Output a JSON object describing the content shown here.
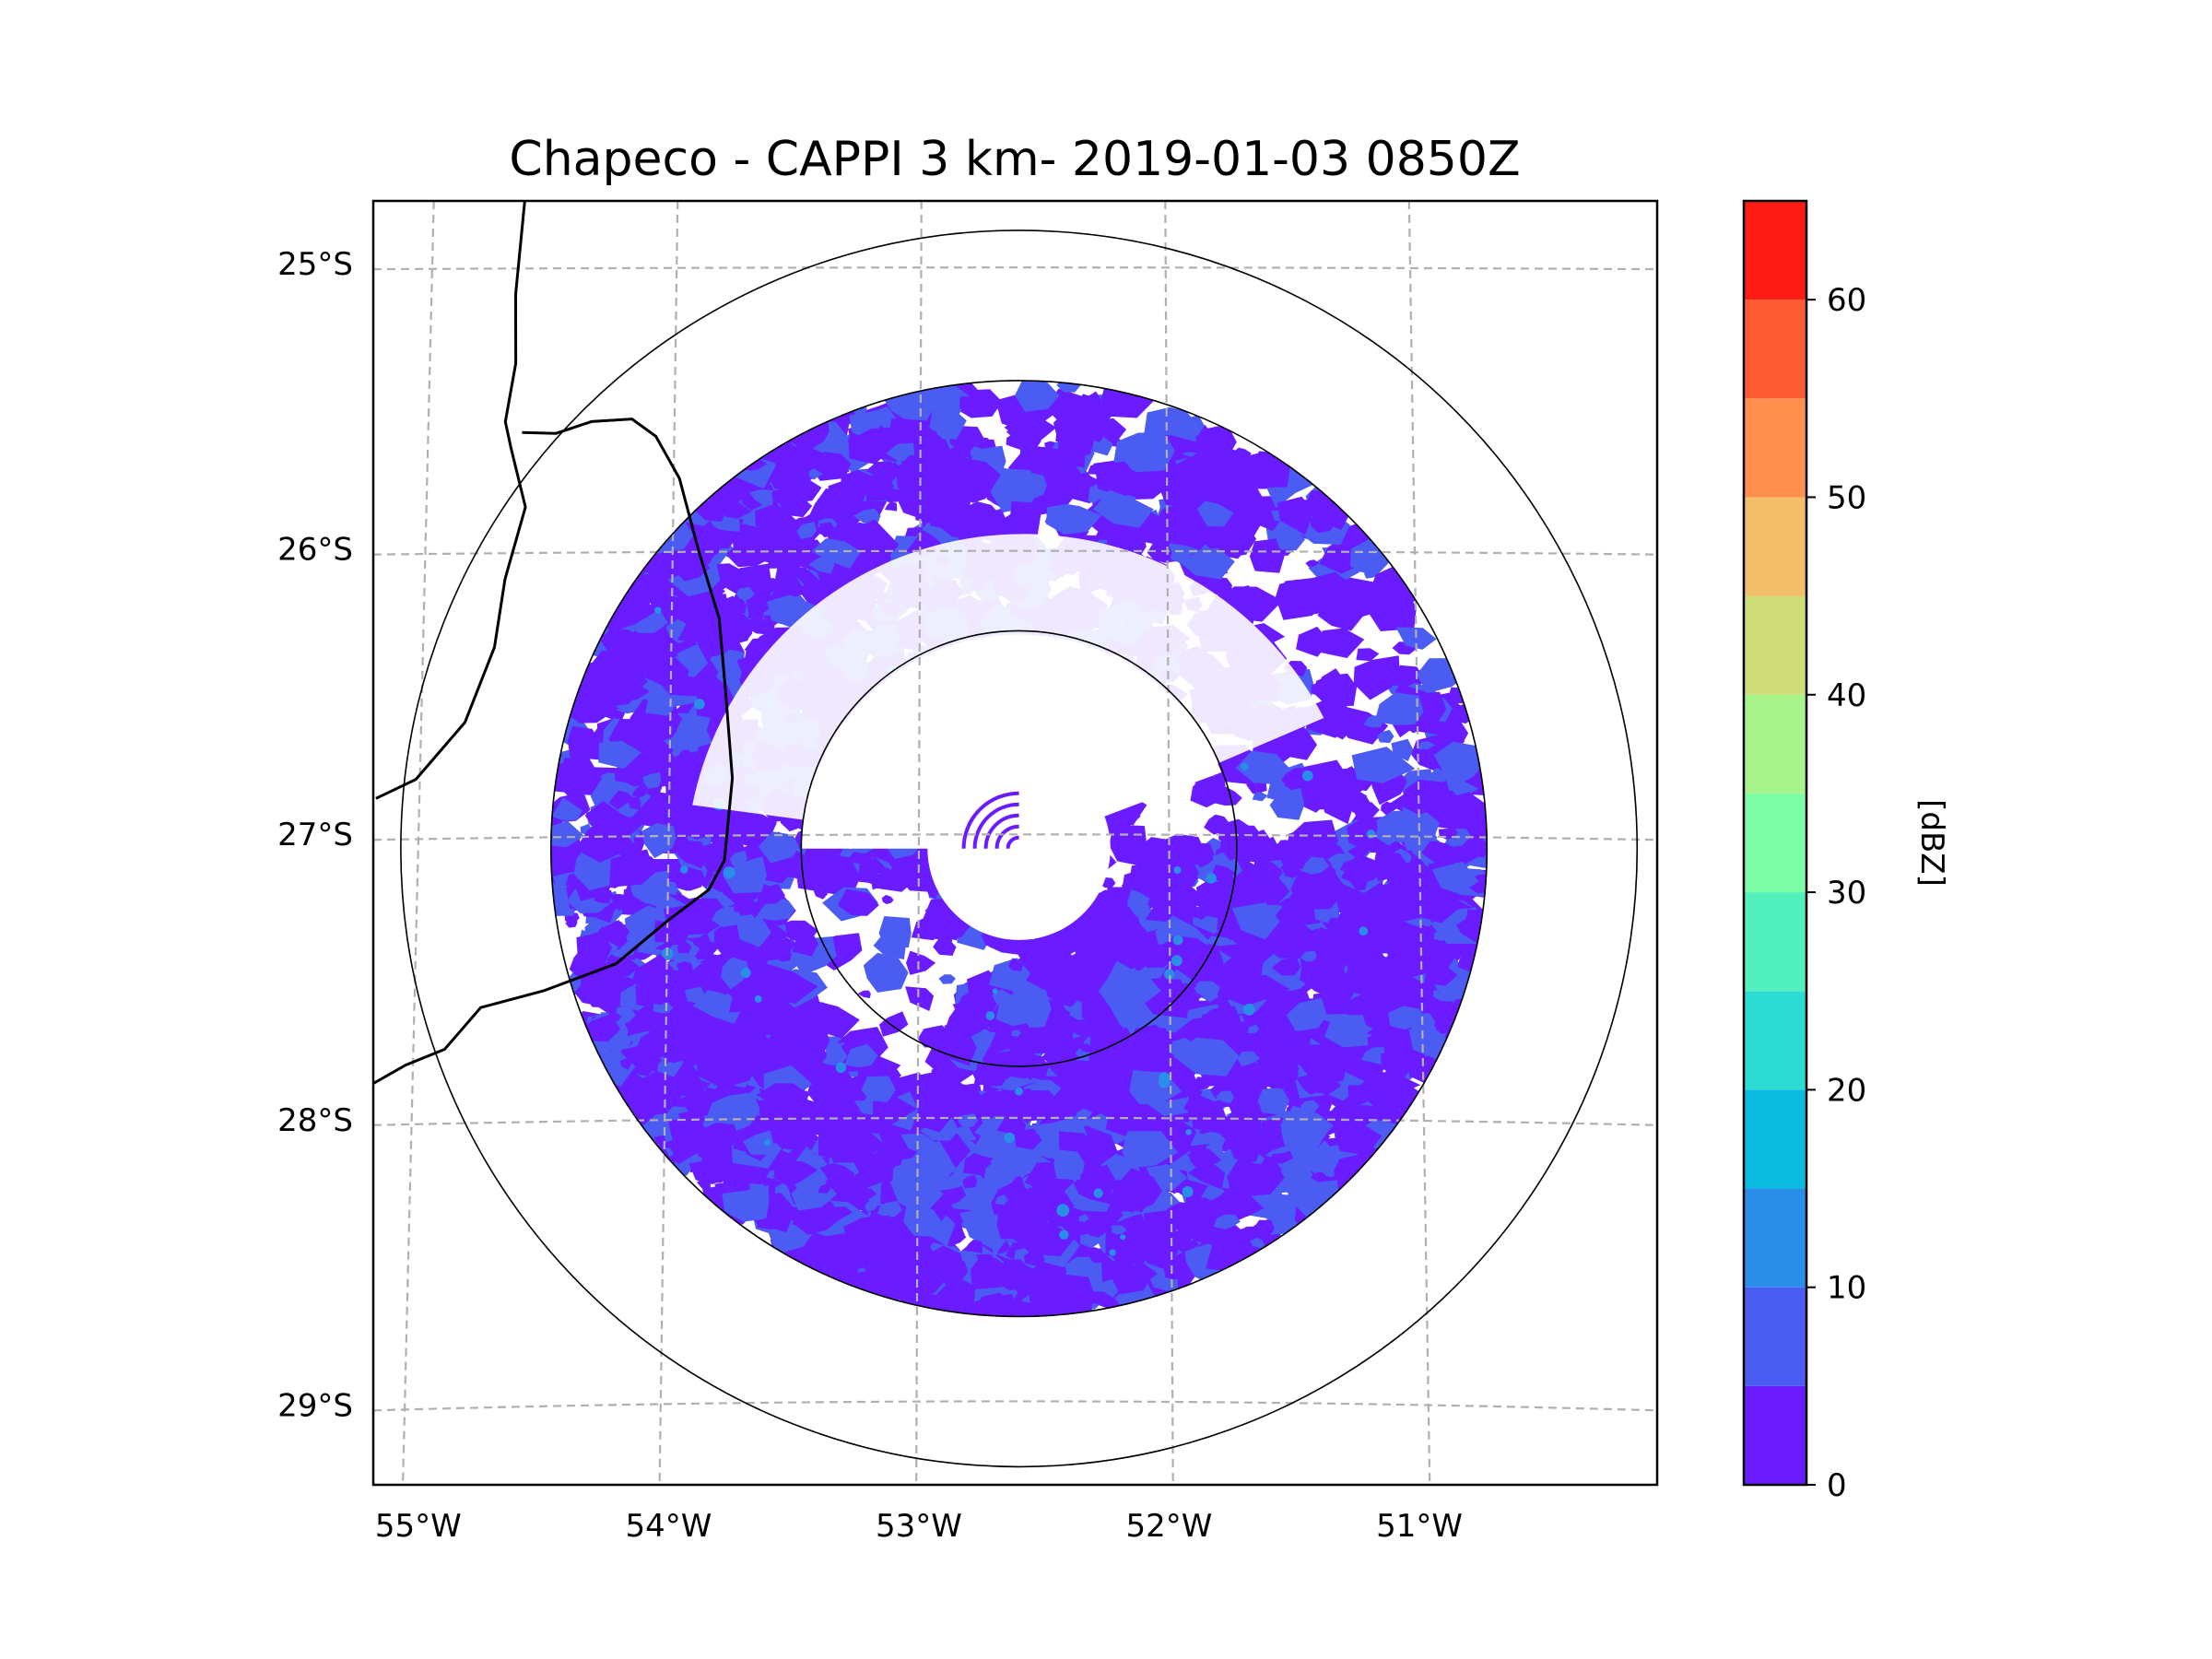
{
  "chart_data": {
    "type": "heatmap",
    "title": "Chapeco - CAPPI 3 km- 2019-01-03 0850Z",
    "xlabel": "",
    "ylabel": "",
    "x_ticks": [
      {
        "value": -55,
        "label": "55°W"
      },
      {
        "value": -54,
        "label": "54°W"
      },
      {
        "value": -53,
        "label": "53°W"
      },
      {
        "value": -52,
        "label": "52°W"
      },
      {
        "value": -51,
        "label": "51°W"
      }
    ],
    "y_ticks": [
      {
        "value": -25,
        "label": "25°S"
      },
      {
        "value": -26,
        "label": "26°S"
      },
      {
        "value": -27,
        "label": "27°S"
      },
      {
        "value": -28,
        "label": "28°S"
      },
      {
        "value": -29,
        "label": "29°S"
      }
    ],
    "xlim": [
      -55.18,
      -50.05
    ],
    "ylim": [
      -29.28,
      -24.78
    ],
    "grid": true,
    "radar_center": {
      "lon": -52.6,
      "lat": -27.05
    },
    "range_rings_deg": [
      0.87,
      1.87,
      2.47
    ],
    "colorbar": {
      "label": "[dBZ]",
      "min": 0,
      "max": 65,
      "levels": [
        0,
        5,
        10,
        15,
        20,
        25,
        30,
        35,
        40,
        45,
        50,
        55,
        60,
        65
      ],
      "colors": [
        "#6a1bff",
        "#4a5cf2",
        "#2a8ee8",
        "#0bbce0",
        "#2cdcd2",
        "#52f0bc",
        "#7cfca4",
        "#a6f48a",
        "#cedc78",
        "#f2be6a",
        "#ff8f4e",
        "#ff5a32",
        "#ff1c14"
      ],
      "ticks": [
        {
          "value": 0,
          "label": "0"
        },
        {
          "value": 10,
          "label": "10"
        },
        {
          "value": 20,
          "label": "20"
        },
        {
          "value": 30,
          "label": "30"
        },
        {
          "value": 40,
          "label": "40"
        },
        {
          "value": 50,
          "label": "50"
        },
        {
          "value": 60,
          "label": "60"
        }
      ]
    },
    "echo_field": {
      "description_level": "Mostly 0–10 dBZ echoes",
      "dominant_dbz": 3,
      "secondary_dbz": 8
    }
  }
}
